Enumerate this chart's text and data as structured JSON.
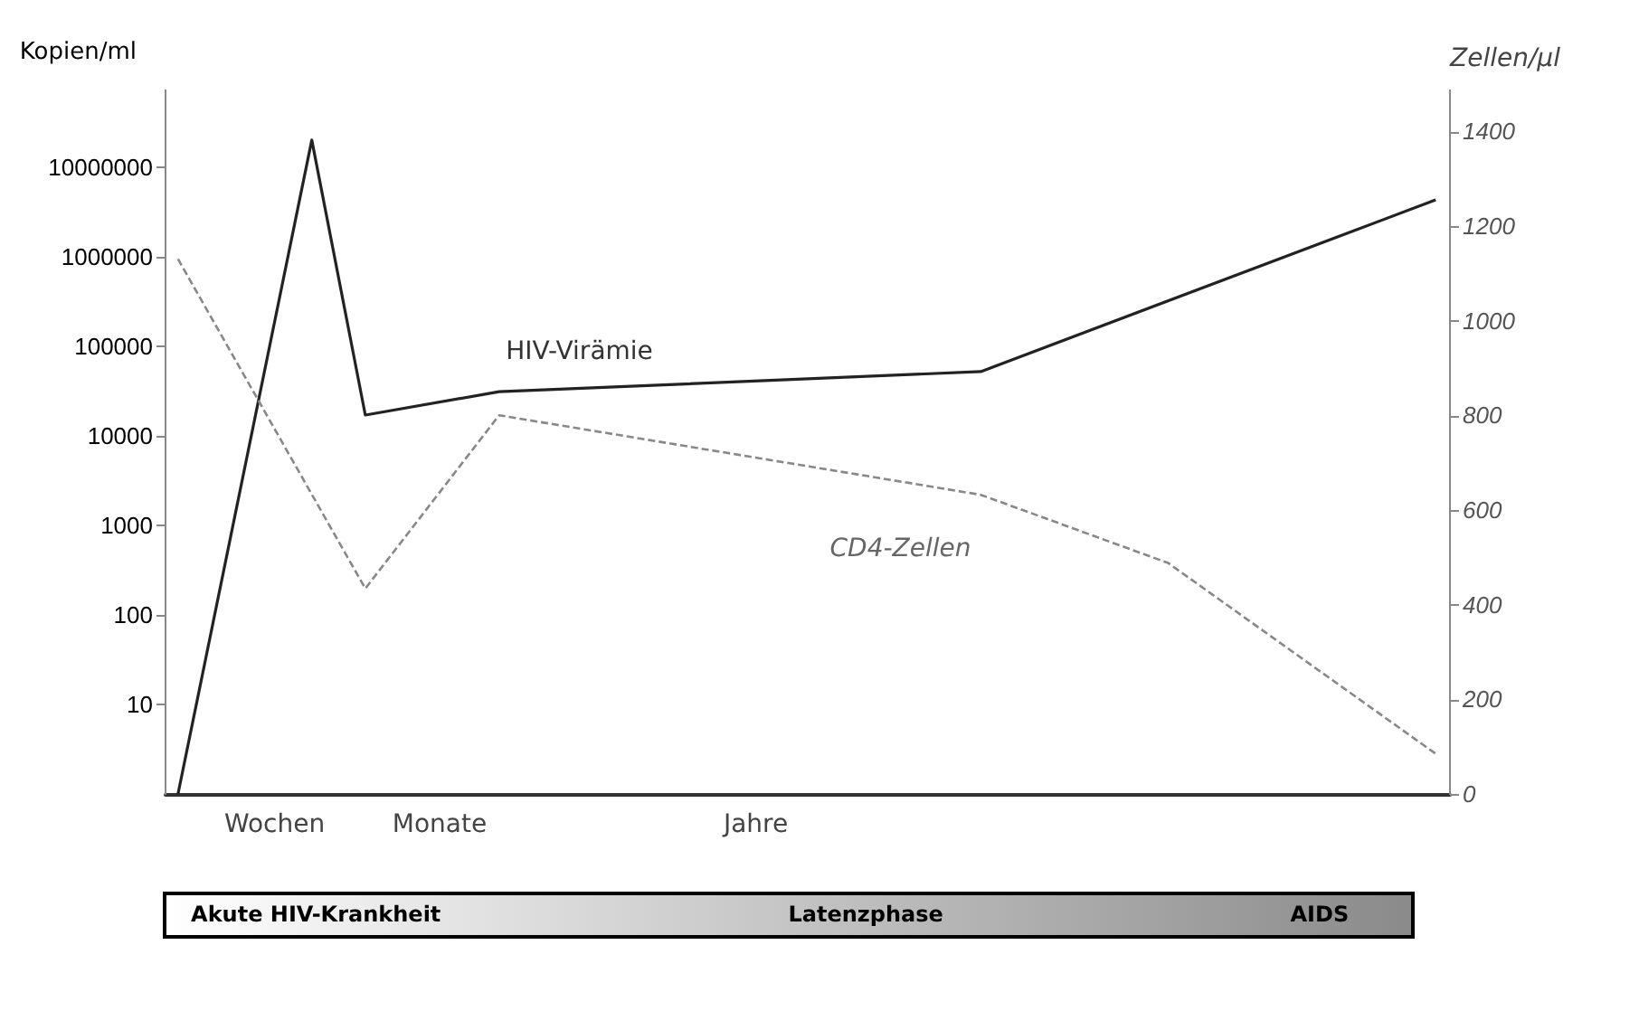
{
  "chart_data": {
    "type": "line",
    "ylabel": "Kopien/ml",
    "y2label": "Zellen/µl",
    "categories": [
      null,
      null,
      null,
      null,
      null,
      null,
      null,
      null,
      null,
      null,
      null,
      null,
      null,
      null,
      null,
      null,
      null,
      null,
      null,
      null,
      null,
      null,
      null,
      null,
      null,
      null,
      null,
      null,
      null,
      null,
      null,
      null,
      null,
      null,
      null,
      null,
      null,
      null,
      null,
      null,
      null,
      null,
      null,
      null,
      null,
      null,
      null,
      null
    ],
    "ylim": [
      1,
      75000000
    ],
    "yticks": [
      10,
      100,
      1000,
      10000,
      100000,
      1000000,
      10000000
    ],
    "y2lim": [
      0,
      1490
    ],
    "y2ticks": [
      0,
      200,
      400,
      600,
      800,
      1000,
      1200,
      1400
    ],
    "log": "y",
    "tick_labels": "y",
    "grid": false,
    "legend": false,
    "marker": "none",
    "series": [
      {
        "name": "HIV-Virämie",
        "color": "#222222",
        "line_style": "solid",
        "values": [
          1,
          null,
          null,
          null,
          null,
          20000000,
          null,
          17000,
          null,
          null,
          null,
          null,
          31000,
          null,
          null,
          null,
          null,
          null,
          null,
          null,
          null,
          null,
          null,
          null,
          null,
          null,
          null,
          null,
          null,
          null,
          52000,
          null,
          null,
          null,
          null,
          null,
          null,
          null,
          null,
          null,
          null,
          null,
          null,
          null,
          null,
          null,
          null,
          4300000
        ]
      },
      {
        "name": "CD4-Zellen",
        "color": "#888888",
        "line_style": "dashed",
        "axis": "y2",
        "values": [
          1130,
          null,
          null,
          null,
          null,
          null,
          null,
          434,
          null,
          null,
          null,
          null,
          800,
          null,
          null,
          null,
          null,
          null,
          null,
          null,
          null,
          null,
          null,
          null,
          null,
          null,
          null,
          null,
          null,
          null,
          632,
          null,
          null,
          null,
          null,
          null,
          null,
          488,
          null,
          null,
          null,
          null,
          null,
          null,
          null,
          null,
          null,
          85
        ]
      }
    ],
    "annotations": [
      "Wochen",
      "Monate",
      "Jahre",
      "Akute HIV-Krankheit",
      "Latenzphase",
      "AIDS"
    ]
  }
}
